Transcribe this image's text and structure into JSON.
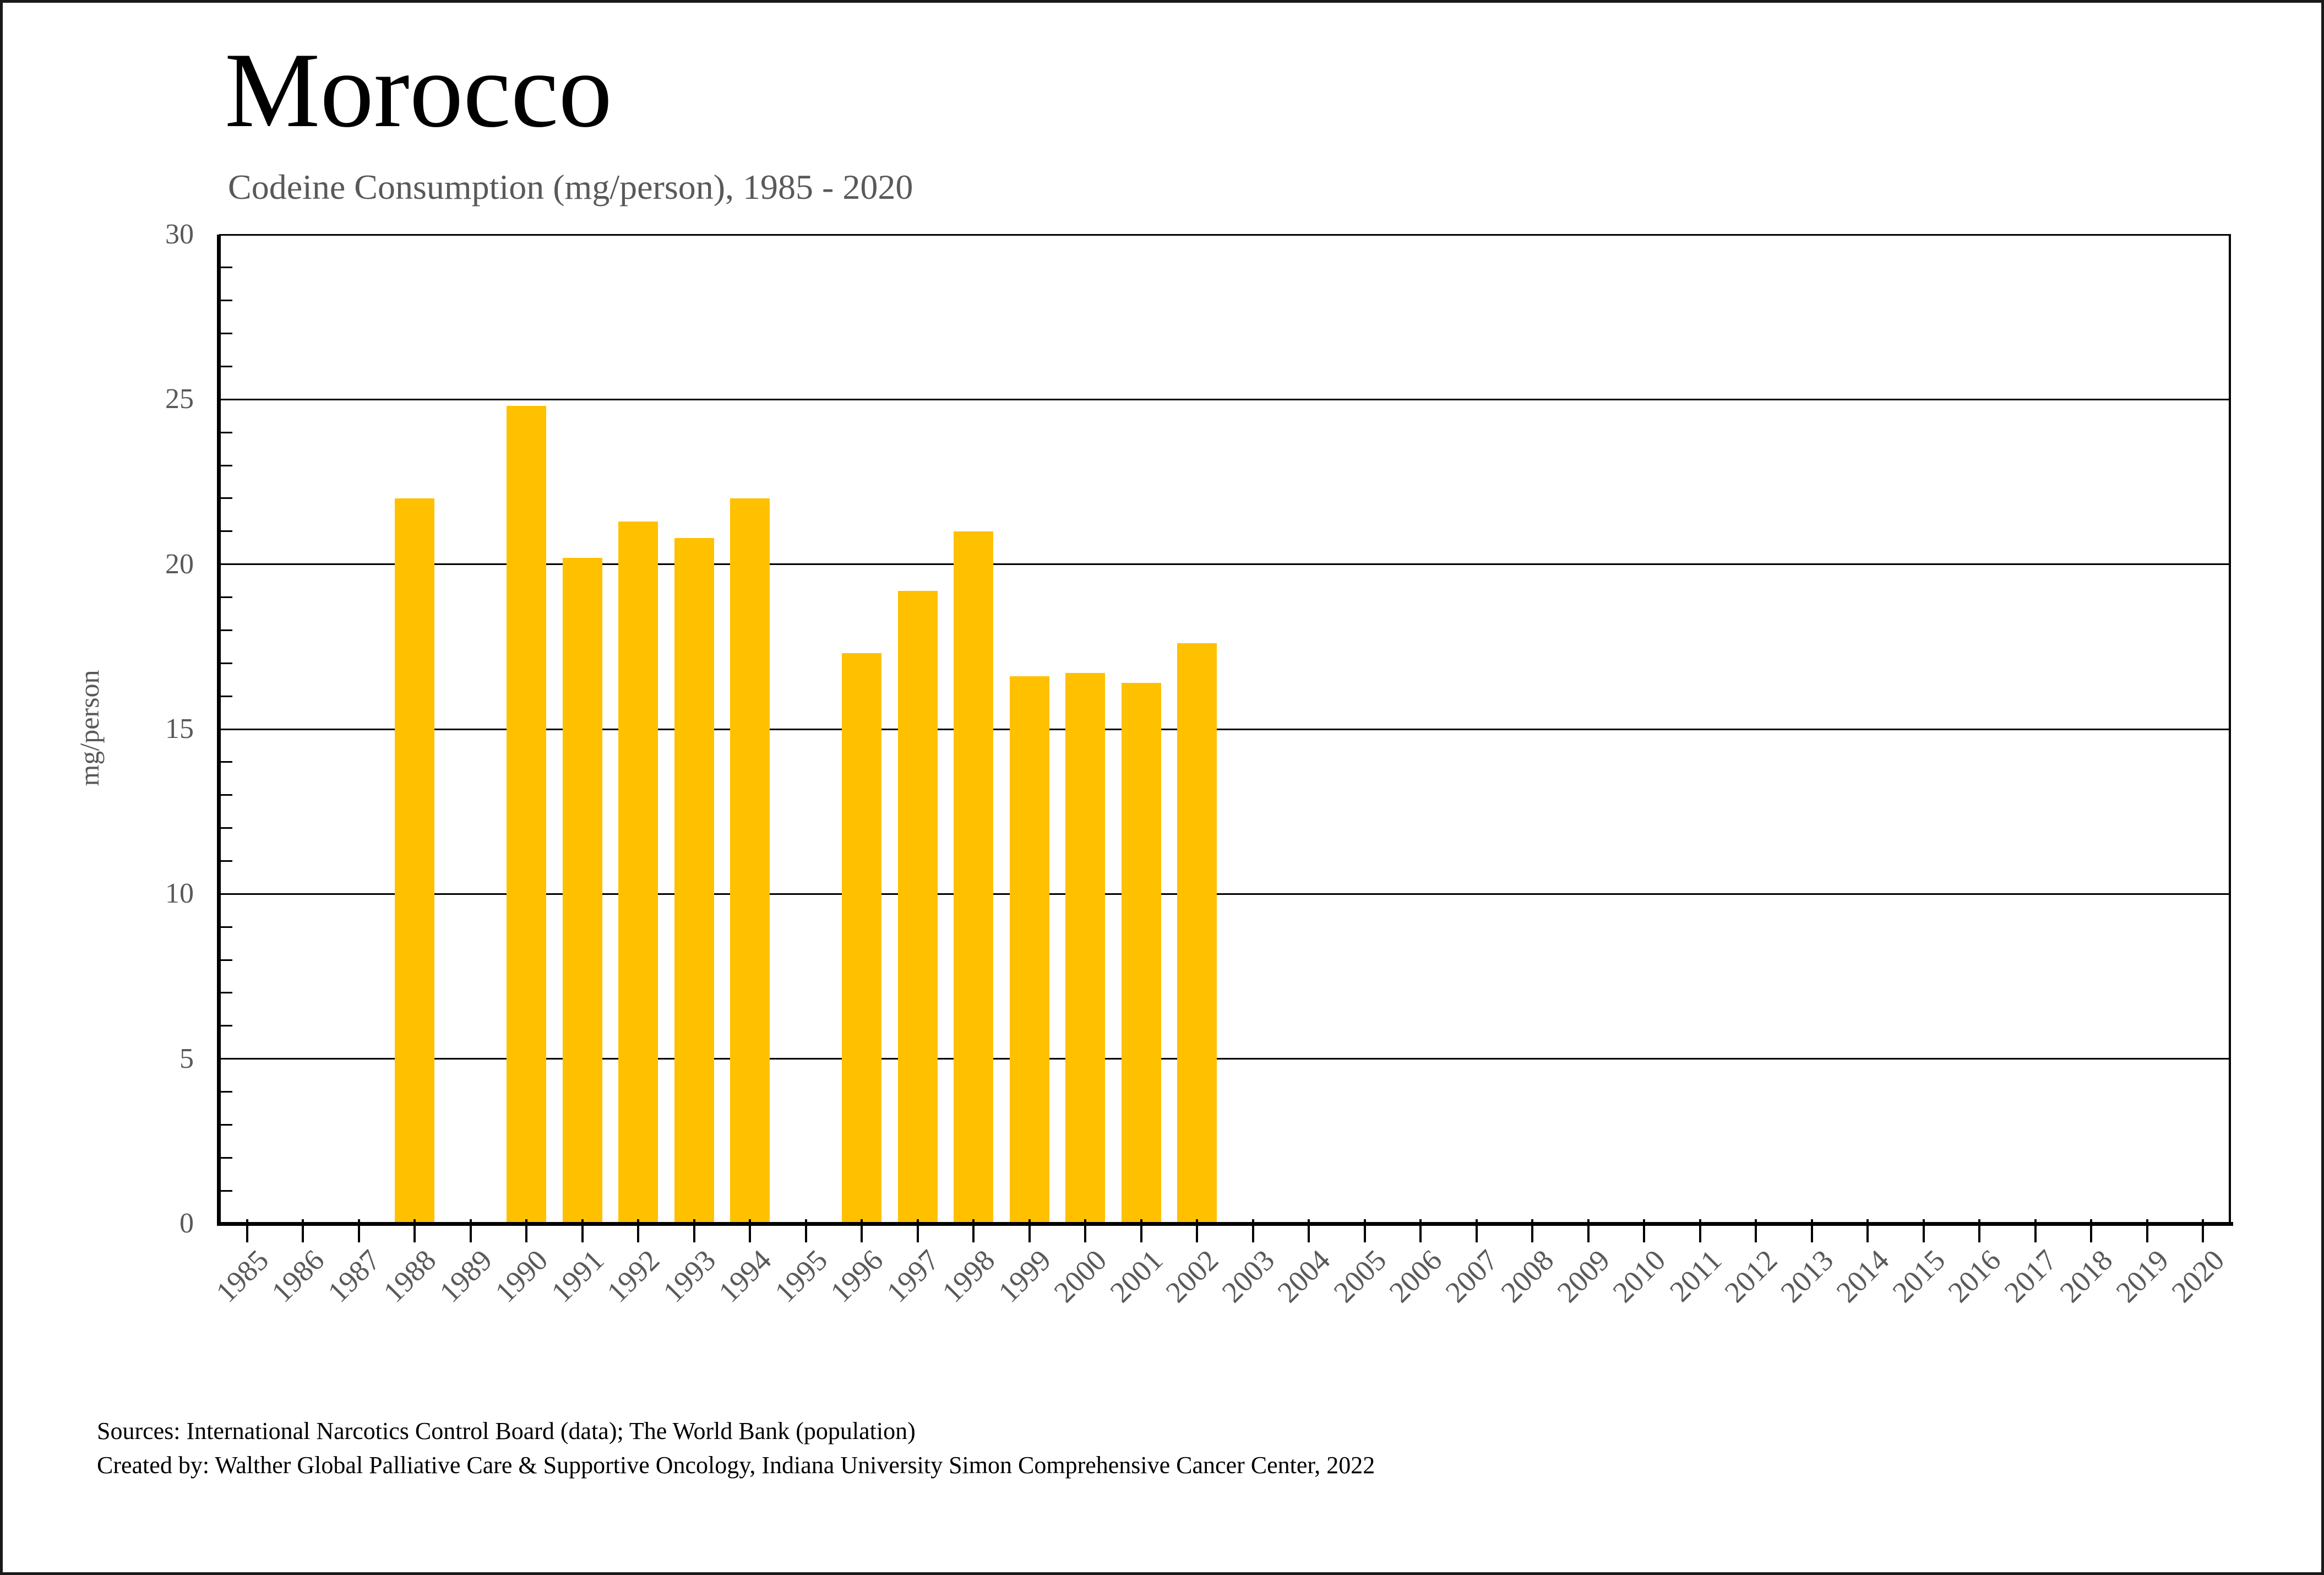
{
  "chart_data": {
    "type": "bar",
    "title": "Morocco",
    "subtitle": "Codeine Consumption (mg/person), 1985 - 2020",
    "ylabel": "mg/person",
    "xlabel": "",
    "ylim": [
      0,
      30
    ],
    "ytick_interval": 5,
    "y_minor_tick_interval": 1,
    "grid": true,
    "legend": false,
    "bar_color": "#FFC000",
    "axis_color": "#000000",
    "tick_label_color": "#595959",
    "categories": [
      "1985",
      "1986",
      "1987",
      "1988",
      "1989",
      "1990",
      "1991",
      "1992",
      "1993",
      "1994",
      "1995",
      "1996",
      "1997",
      "1998",
      "1999",
      "2000",
      "2001",
      "2002",
      "2003",
      "2004",
      "2005",
      "2006",
      "2007",
      "2008",
      "2009",
      "2010",
      "2011",
      "2012",
      "2013",
      "2014",
      "2015",
      "2016",
      "2017",
      "2018",
      "2019",
      "2020"
    ],
    "values": [
      null,
      null,
      null,
      22.0,
      null,
      24.8,
      20.2,
      21.3,
      20.8,
      22.0,
      null,
      17.3,
      19.2,
      21.0,
      16.6,
      16.7,
      16.4,
      17.6,
      null,
      null,
      null,
      null,
      null,
      null,
      null,
      null,
      null,
      null,
      null,
      null,
      null,
      null,
      null,
      null,
      null,
      null
    ]
  },
  "footer": {
    "source_line1": "Sources: International Narcotics Control Board (data); The World Bank (population)",
    "source_line2": "Created by: Walther Global Palliative Care & Supportive Oncology, Indiana University Simon Comprehensive Cancer Center, 2022"
  }
}
